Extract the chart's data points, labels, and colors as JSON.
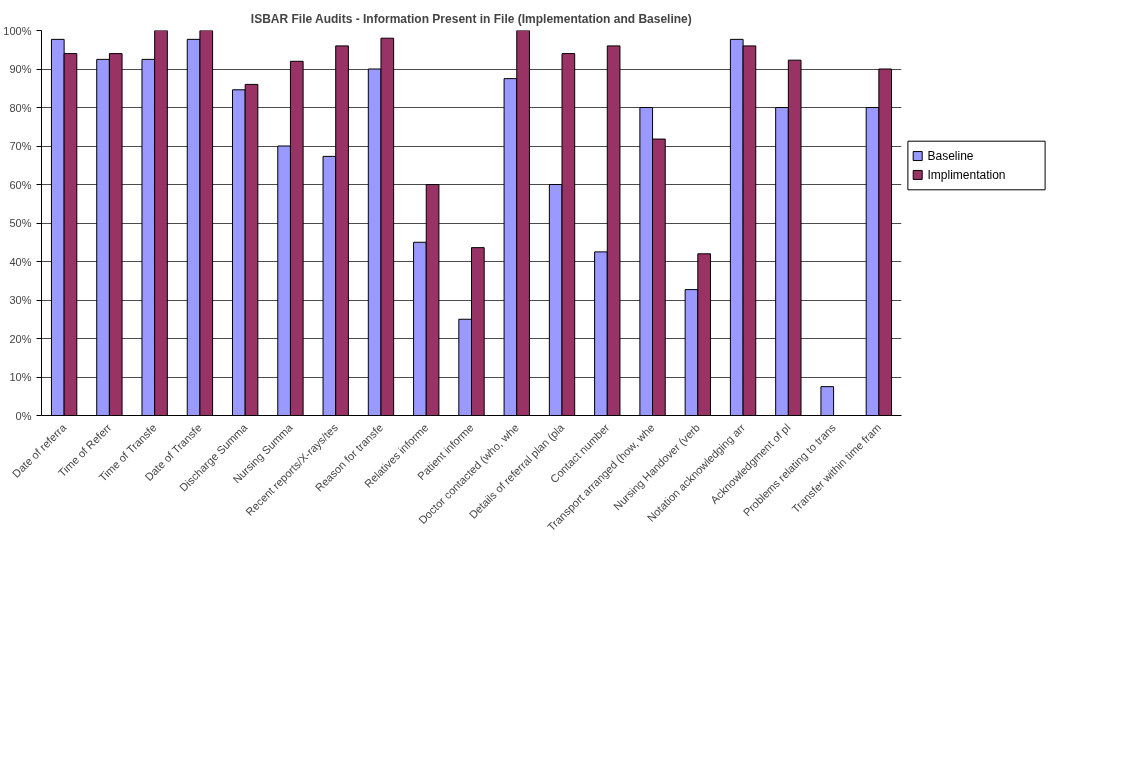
{
  "chart_data": {
    "type": "bar",
    "title": "ISBAR File Audits - Information Present in File (Implementation and Baseline)",
    "categories": [
      "Date of referra",
      "Time of Referr",
      "Time of Transfe",
      "Date of Transfe",
      "Discharge Summa",
      "Nursing Summa",
      "Recent reports/X-rays/tes",
      "Reason for transfe",
      "Relatives informe",
      "Patient informe",
      "Doctor contacted (who, whe",
      "Details of referral plan (pla",
      "Contact number",
      "Transport arranged (how, whe",
      "Nursing Handover (verb",
      "Notation acknowledging arr",
      "Acknowledgment of pl",
      "Problems relating to trans",
      "Transfer within time fram"
    ],
    "series": [
      {
        "name": "Baseline",
        "color": "#9999ff",
        "values": [
          97.7,
          92.5,
          92.5,
          97.7,
          84.6,
          70,
          67.3,
          90,
          45,
          25,
          87.5,
          60,
          42.5,
          80,
          32.7,
          97.7,
          80,
          7.5,
          80
        ]
      },
      {
        "name": "Implimentation",
        "color": "#993366",
        "values": [
          94,
          94,
          100,
          100,
          86,
          92,
          96,
          98,
          60,
          43.6,
          100,
          94,
          96,
          71.8,
          42,
          96,
          92.3,
          0,
          90
        ]
      }
    ],
    "ylim": [
      0,
      100
    ],
    "yticks": [
      {
        "value": 0,
        "label": "0%"
      },
      {
        "value": 10,
        "label": "10%"
      },
      {
        "value": 20,
        "label": "20%"
      },
      {
        "value": 30,
        "label": "30%"
      },
      {
        "value": 40,
        "label": "40%"
      },
      {
        "value": 50,
        "label": "50%"
      },
      {
        "value": 60,
        "label": "60%"
      },
      {
        "value": 70,
        "label": "70%"
      },
      {
        "value": 80,
        "label": "80%"
      },
      {
        "value": 90,
        "label": "90%"
      },
      {
        "value": 100,
        "label": "100%"
      }
    ],
    "grid": "y",
    "legend": "right"
  }
}
